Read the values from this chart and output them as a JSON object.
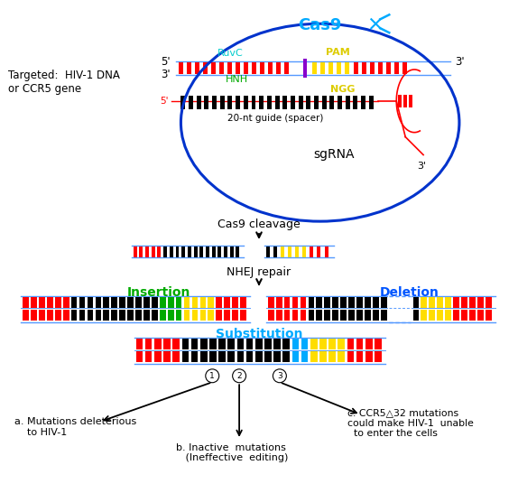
{
  "bg_color": "#ffffff",
  "label_targeted": "Targeted:  HIV-1 DNA\nor CCR5 gene",
  "cas9_label": "Cas9",
  "ruvc_label": "RuvC",
  "hnh_label": "HNH",
  "pam_label": "PAM",
  "ngg_label": "NGG",
  "spacer_label": "20-nt guide (spacer)",
  "sgrna_label": "sgRNA",
  "cleavage_label": "Cas9 cleavage",
  "nhej_label": "NHEJ repair",
  "insertion_label": "Insertion",
  "deletion_label": "Deletion",
  "substitution_label": "Substitution",
  "red_color": "#ff0000",
  "black_color": "#000000",
  "yellow_color": "#ffdd00",
  "green_color": "#00aa00",
  "blue_color": "#00aaff",
  "dna_blue": "#5599ff",
  "ellipse_color": "#0033cc",
  "cut_color": "#8800cc",
  "cas9_color": "#00aaff",
  "ruvc_color": "#00cccc",
  "hnh_color": "#00aa00",
  "pam_color": "#ddcc00",
  "ngg_color": "#ddcc00",
  "insertion_color": "#00aa00",
  "deletion_color": "#0055ff",
  "substitution_color": "#00aaff"
}
